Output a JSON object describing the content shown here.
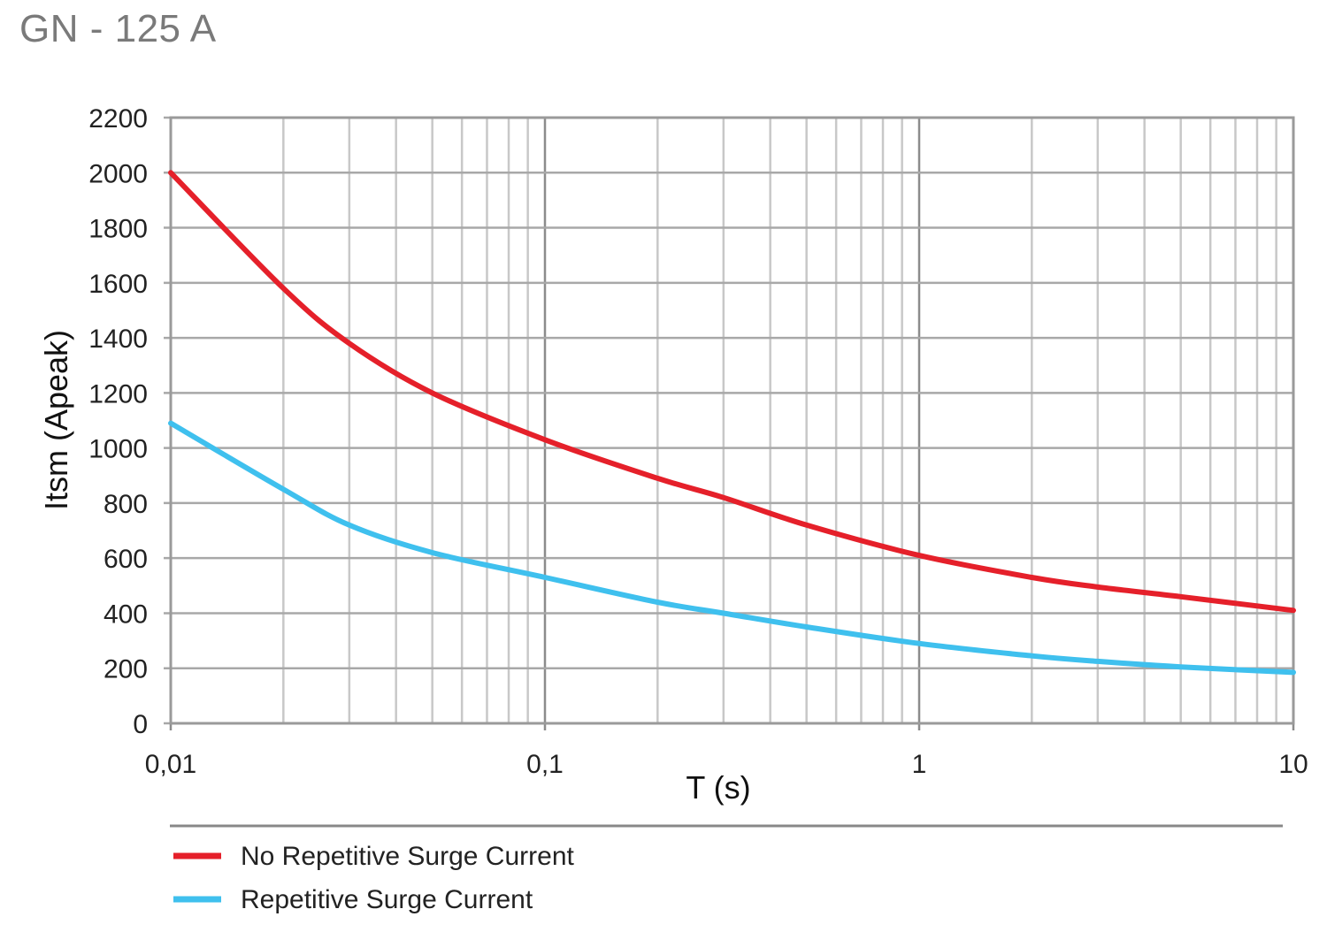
{
  "chart_data": {
    "type": "line",
    "title": "GN - 125 A",
    "xlabel": "T (s)",
    "ylabel": "Itsm (Apeak)",
    "x_scale": "log",
    "xlim": [
      0.01,
      10
    ],
    "ylim": [
      0,
      2200
    ],
    "x_ticks": [
      {
        "value": 0.01,
        "label": "0,01"
      },
      {
        "value": 0.1,
        "label": "0,1"
      },
      {
        "value": 1,
        "label": "1"
      },
      {
        "value": 10,
        "label": "10"
      }
    ],
    "y_ticks": [
      0,
      200,
      400,
      600,
      800,
      1000,
      1200,
      1400,
      1600,
      1800,
      2000,
      2200
    ],
    "grid": true,
    "legend_position": "bottom",
    "series": [
      {
        "name": "No Repetitive Surge Current",
        "color": "#e5202a",
        "x": [
          0.01,
          0.02,
          0.03,
          0.05,
          0.1,
          0.2,
          0.3,
          0.5,
          1,
          2,
          3,
          5,
          10
        ],
        "y": [
          2000,
          1580,
          1380,
          1200,
          1030,
          890,
          820,
          720,
          610,
          530,
          495,
          460,
          410
        ]
      },
      {
        "name": "Repetitive Surge Current",
        "color": "#3fc0ee",
        "x": [
          0.01,
          0.02,
          0.03,
          0.05,
          0.1,
          0.2,
          0.3,
          0.5,
          1,
          2,
          3,
          5,
          10
        ],
        "y": [
          1090,
          850,
          720,
          620,
          530,
          440,
          400,
          350,
          290,
          245,
          225,
          205,
          185
        ]
      }
    ]
  }
}
